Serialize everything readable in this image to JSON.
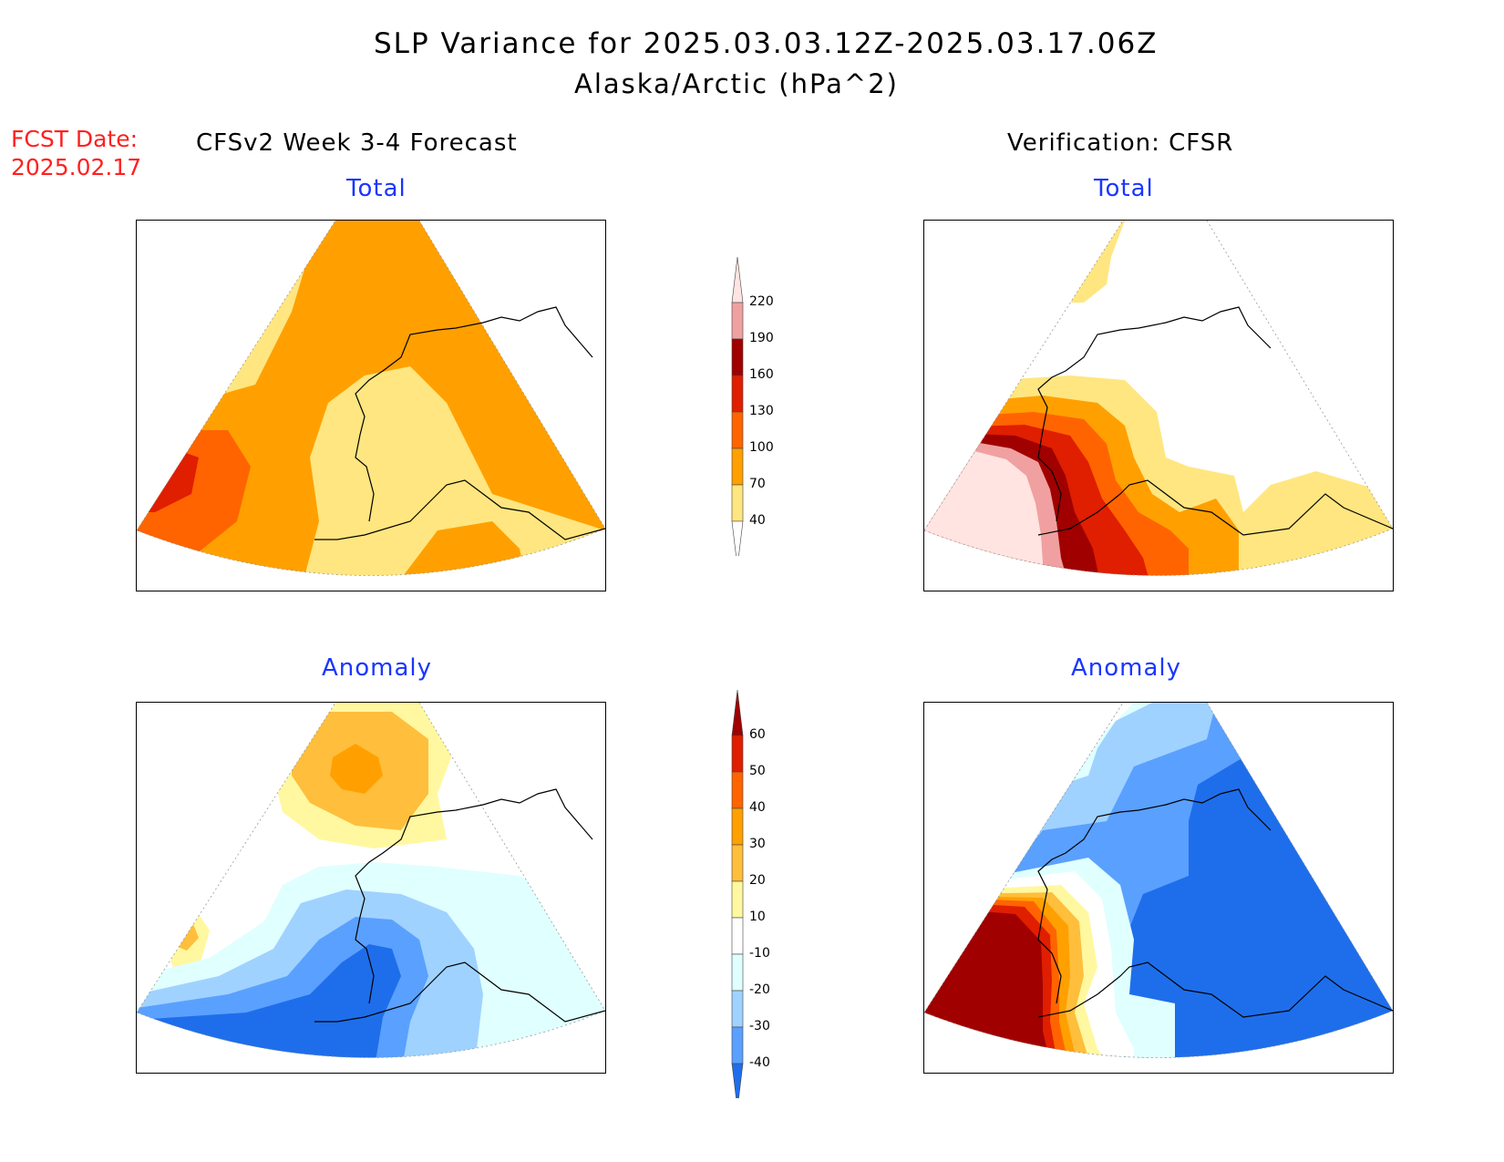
{
  "title": "SLP Variance for 2025.03.03.12Z-2025.03.17.06Z",
  "subtitle": "Alaska/Arctic (hPa^2)",
  "fcst_date": {
    "label": "FCST Date:",
    "value": "2025.02.17"
  },
  "left_header": "CFSv2 Week 3-4 Forecast",
  "right_header": "Verification: CFSR",
  "panels": {
    "fc_total": {
      "title": "Total"
    },
    "vr_total": {
      "title": "Total"
    },
    "fc_anom": {
      "title": "Anomaly"
    },
    "vr_anom": {
      "title": "Anomaly"
    }
  },
  "colorbars": {
    "total": {
      "ticks": [
        "220",
        "190",
        "160",
        "130",
        "100",
        "70",
        "40"
      ],
      "colors": [
        "#ffe4e1",
        "#f0a0a0",
        "#a00000",
        "#e01e00",
        "#ff6400",
        "#ffa000",
        "#ffe680",
        "#ffffff"
      ]
    },
    "anomaly": {
      "ticks": [
        "60",
        "50",
        "40",
        "30",
        "20",
        "10",
        "-10",
        "-20",
        "-30",
        "-40"
      ],
      "colors": [
        "#a00000",
        "#e01e00",
        "#ff6400",
        "#ffa000",
        "#ffbe3c",
        "#fff8a0",
        "#ffffff",
        "#e0ffff",
        "#a0d2ff",
        "#5aa0ff",
        "#1e6eeb"
      ]
    }
  }
}
